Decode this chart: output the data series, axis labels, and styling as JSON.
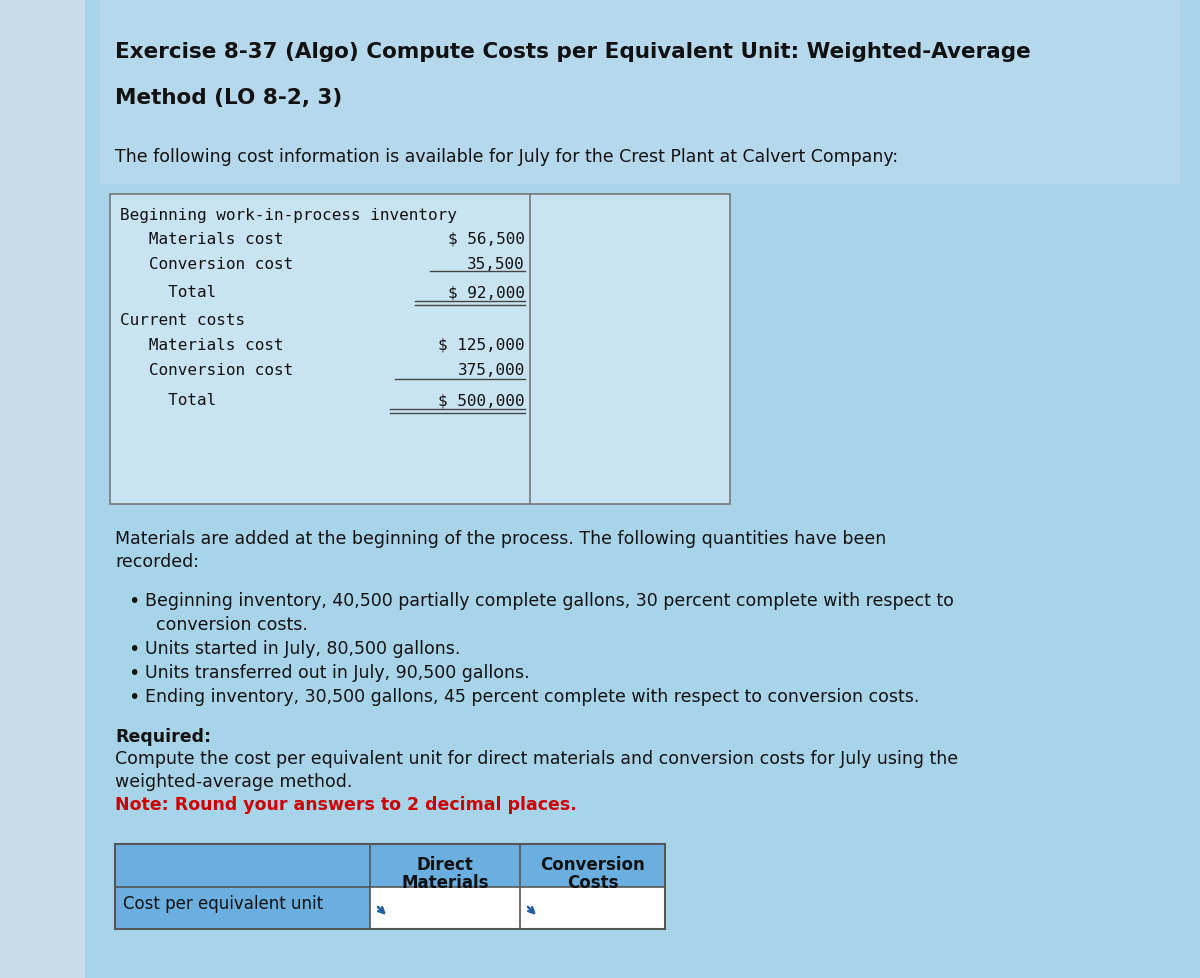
{
  "title_line1": "Exercise 8-37 (Algo) Compute Costs per Equivalent Unit: Weighted-Average",
  "title_line2": "Method (LO 8-2, 3)",
  "intro_text": "The following cost information is available for July for the Crest Plant at Calvert Company:",
  "cost_table": {
    "bwip_label": "Beginning work-in-process inventory",
    "materials_label": "   Materials cost",
    "conversion_label": "   Conversion cost",
    "total_label": "     Total",
    "current_label": "Current costs",
    "cur_materials_label": "   Materials cost",
    "cur_conversion_label": "   Conversion cost",
    "cur_total_label": "     Total",
    "bwip_materials_val": "$ 56,500",
    "bwip_conversion_val": "35,500",
    "bwip_total_val": "$ 92,000",
    "cur_materials_val": "$ 125,000",
    "cur_conversion_val": "375,000",
    "cur_total_val": "$ 500,000"
  },
  "materials_text1": "Materials are added at the beginning of the process. The following quantities have been",
  "materials_text2": "recorded:",
  "bullet1_line1": "Beginning inventory, 40,500 partially complete gallons, 30 percent complete with respect to",
  "bullet1_line2": "  conversion costs.",
  "bullet2": "Units started in July, 80,500 gallons.",
  "bullet3": "Units transferred out in July, 90,500 gallons.",
  "bullet4": "Ending inventory, 30,500 gallons, 45 percent complete with respect to conversion costs.",
  "required_label": "Required:",
  "required_text1": "Compute the cost per equivalent unit for direct materials and conversion costs for July using the",
  "required_text2": "weighted-average method.",
  "note_text": "Note: Round your answers to 2 decimal places.",
  "table_row_label": "Cost per equivalent unit",
  "col1_header_line1": "Direct",
  "col1_header_line2": "Materials",
  "col2_header_line1": "Conversion",
  "col2_header_line2": "Costs",
  "bg_light_blue": "#add8e6",
  "bg_main": "#a8d4ea",
  "table_bg": "#b8daea",
  "table_header_bg": "#6aafe0",
  "white": "#ffffff",
  "dark_text": "#111111",
  "red_note": "#cc0000",
  "border_color": "#777777"
}
